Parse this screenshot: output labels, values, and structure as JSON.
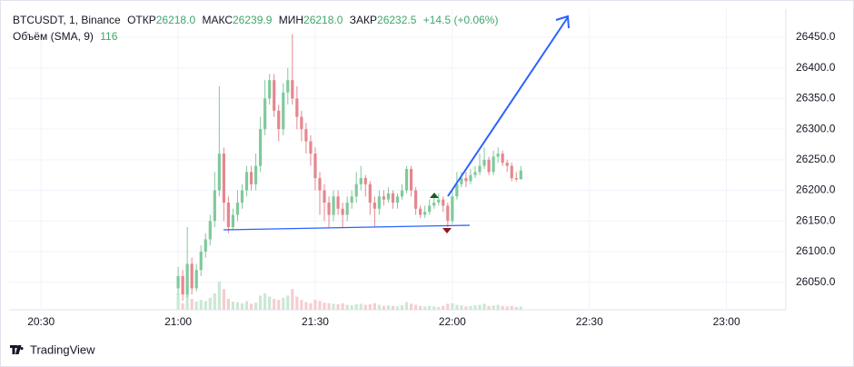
{
  "chart_data": {
    "type": "candlestick",
    "x": [
      30,
      31,
      32,
      33,
      34,
      35,
      36,
      37,
      38,
      39,
      40,
      41,
      42,
      43,
      44,
      45,
      46,
      47,
      48,
      49,
      50,
      51,
      52,
      53,
      54,
      55,
      56,
      57,
      58,
      59,
      60,
      61,
      62,
      63,
      64,
      65,
      66,
      67,
      68,
      69,
      70,
      71,
      72,
      73,
      74,
      75,
      76,
      77,
      78,
      79,
      80,
      81,
      82,
      83,
      84,
      85,
      86,
      87,
      88,
      89,
      90,
      91,
      92,
      93,
      94,
      95,
      96,
      97,
      98,
      99,
      100,
      101,
      102,
      103,
      104,
      105
    ],
    "open": [
      26040,
      26060,
      26030,
      26080,
      26040,
      26070,
      26100,
      26120,
      26150,
      26200,
      26260,
      26180,
      26140,
      26160,
      26180,
      26200,
      26230,
      26210,
      26240,
      26300,
      26350,
      26380,
      26330,
      26300,
      26360,
      26380,
      26350,
      26320,
      26300,
      26280,
      26260,
      26220,
      26200,
      26180,
      26160,
      26190,
      26170,
      26160,
      26180,
      26190,
      26210,
      26220,
      26210,
      26180,
      26170,
      26190,
      26185,
      26195,
      26180,
      26190,
      26200,
      26235,
      26200,
      26170,
      26160,
      26165,
      26175,
      26180,
      26185,
      26175,
      26150,
      26190,
      26210,
      26220,
      26215,
      26225,
      26230,
      26240,
      26250,
      26230,
      26255,
      26260,
      26245,
      26240,
      26220,
      26218
    ],
    "high": [
      26075,
      26070,
      26140,
      26090,
      26080,
      26110,
      26130,
      26160,
      26230,
      26370,
      26270,
      26190,
      26170,
      26200,
      26210,
      26240,
      26240,
      26260,
      26320,
      26380,
      26390,
      26390,
      26340,
      26375,
      26400,
      26455,
      26370,
      26330,
      26310,
      26290,
      26270,
      26230,
      26210,
      26190,
      26200,
      26200,
      26180,
      26190,
      26200,
      26230,
      26240,
      26225,
      26215,
      26190,
      26200,
      26200,
      26205,
      26200,
      26195,
      26210,
      26240,
      26240,
      26205,
      26175,
      26175,
      26185,
      26190,
      26195,
      26190,
      26180,
      26200,
      26230,
      26230,
      26230,
      26235,
      26240,
      26260,
      26270,
      26255,
      26265,
      26270,
      26265,
      26250,
      26245,
      26230,
      26239.9
    ],
    "low": [
      26030,
      26020,
      26025,
      26030,
      26035,
      26060,
      26090,
      26110,
      26140,
      26190,
      26150,
      26130,
      26135,
      26150,
      26170,
      26190,
      26200,
      26200,
      26230,
      26290,
      26340,
      26320,
      26280,
      26290,
      26340,
      26340,
      26300,
      26280,
      26260,
      26240,
      26200,
      26160,
      26150,
      26140,
      26150,
      26160,
      26140,
      26150,
      26170,
      26180,
      26200,
      26190,
      26160,
      26140,
      26160,
      26175,
      26180,
      26170,
      26170,
      26185,
      26195,
      26190,
      26160,
      26155,
      26155,
      26160,
      26170,
      26175,
      26165,
      26140,
      26145,
      26185,
      26205,
      26205,
      26210,
      26220,
      26225,
      26235,
      26225,
      26225,
      26245,
      26240,
      26230,
      26215,
      26215,
      26218
    ],
    "close": [
      26060,
      26030,
      26080,
      26040,
      26070,
      26100,
      26120,
      26150,
      26200,
      26260,
      26180,
      26140,
      26160,
      26180,
      26200,
      26230,
      26210,
      26240,
      26300,
      26350,
      26380,
      26330,
      26300,
      26360,
      26380,
      26350,
      26320,
      26300,
      26280,
      26260,
      26220,
      26200,
      26180,
      26160,
      26190,
      26170,
      26160,
      26180,
      26190,
      26210,
      26220,
      26210,
      26180,
      26170,
      26190,
      26185,
      26195,
      26180,
      26190,
      26200,
      26235,
      26200,
      26170,
      26160,
      26165,
      26175,
      26180,
      26185,
      26175,
      26150,
      26190,
      26210,
      26220,
      26215,
      26225,
      26230,
      26240,
      26250,
      26230,
      26255,
      26260,
      26245,
      26240,
      26220,
      26218,
      26232.5
    ],
    "volume": [
      300,
      120,
      450,
      200,
      150,
      180,
      160,
      220,
      300,
      520,
      380,
      200,
      150,
      140,
      120,
      160,
      110,
      130,
      260,
      300,
      240,
      200,
      180,
      220,
      260,
      380,
      240,
      180,
      140,
      120,
      180,
      160,
      130,
      120,
      110,
      100,
      120,
      90,
      80,
      100,
      110,
      90,
      100,
      120,
      90,
      70,
      80,
      70,
      60,
      80,
      140,
      110,
      90,
      70,
      60,
      70,
      60,
      50,
      70,
      110,
      120,
      90,
      80,
      60,
      70,
      80,
      90,
      110,
      70,
      80,
      90,
      70,
      60,
      70,
      50,
      60
    ],
    "up_color": "#80c99c",
    "down_color": "#e5878e",
    "volume_up_color": "#cbe8d5",
    "volume_down_color": "#f6cdd0",
    "volume_lim": [
      0,
      1000
    ],
    "xlim": [
      -7,
      163
    ],
    "xticks": [
      {
        "value": 0,
        "label": "20:30"
      },
      {
        "value": 30,
        "label": "21:00"
      },
      {
        "value": 60,
        "label": "21:30"
      },
      {
        "value": 90,
        "label": "22:00"
      },
      {
        "value": 120,
        "label": "22:30"
      },
      {
        "value": 150,
        "label": "23:00"
      }
    ],
    "ylim": [
      26005,
      26496
    ],
    "yticks": [
      {
        "value": 26050,
        "label": "26050.0"
      },
      {
        "value": 26100,
        "label": "26100.0"
      },
      {
        "value": 26150,
        "label": "26150.0"
      },
      {
        "value": 26200,
        "label": "26200.0"
      },
      {
        "value": 26250,
        "label": "26250.0"
      },
      {
        "value": 26300,
        "label": "26300.0"
      },
      {
        "value": 26350,
        "label": "26350.0"
      },
      {
        "value": 26400,
        "label": "26400.0"
      },
      {
        "value": 26450,
        "label": "26450.0"
      }
    ],
    "grid": true
  },
  "header": {
    "symbol": "BTCUSDT, 1, Binance",
    "open_label": "ОТКР",
    "open": "26218.0",
    "high_label": "МАКС",
    "high": "26239.9",
    "low_label": "МИН",
    "low": "26218.0",
    "close_label": "ЗАКР",
    "close": "26232.5",
    "change": "+14.5 (+0.06%)",
    "volume_label": "Объём (SMA, 9)",
    "volume_value": "116"
  },
  "footer": {
    "brand": "TradingView"
  }
}
